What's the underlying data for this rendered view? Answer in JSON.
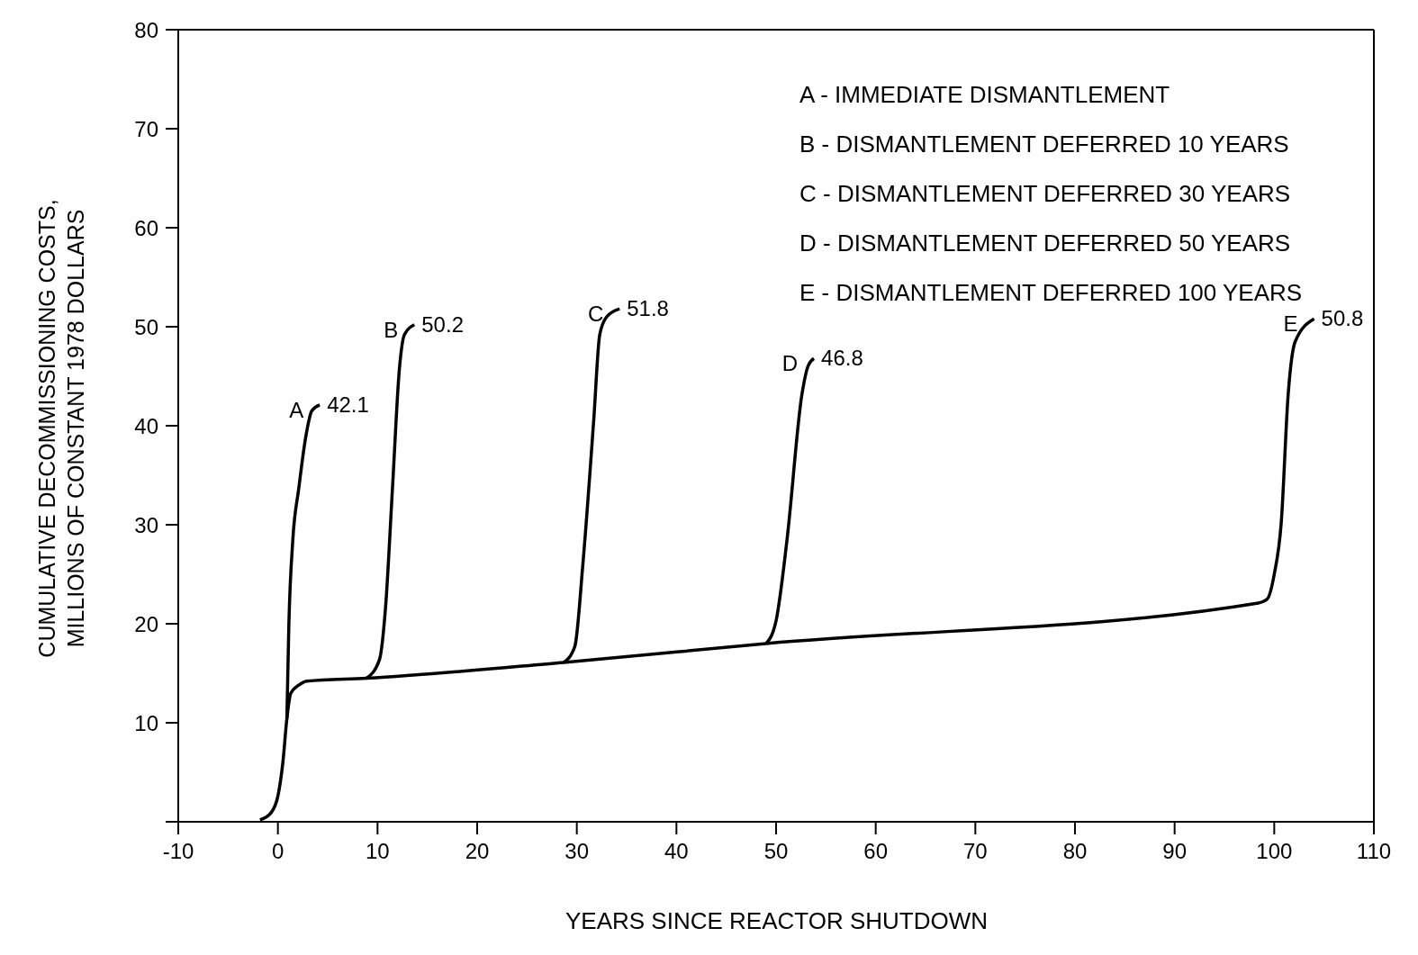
{
  "chart_data": {
    "type": "line",
    "xlabel": "YEARS SINCE REACTOR SHUTDOWN",
    "ylabel": "CUMULATIVE DECOMMISSIONING COSTS, MILLIONS OF CONSTANT 1978 DOLLARS",
    "xlim": [
      -10,
      110
    ],
    "xticks": [
      -10,
      0,
      10,
      20,
      30,
      40,
      50,
      60,
      70,
      80,
      90,
      100,
      110
    ],
    "ylim": [
      0,
      80
    ],
    "yticks": [
      {
        "value": 0,
        "label": null
      },
      10,
      20,
      30,
      40,
      50,
      60,
      70,
      80
    ],
    "marker": "none",
    "line_style": "solid",
    "annotations": [
      "A - IMMEDIATE DISMANTLEMENT",
      "B - DISMANTLEMENT DEFERRED 10 YEARS",
      "C - DISMANTLEMENT DEFERRED 30 YEARS",
      "D - DISMANTLEMENT DEFERRED 50 YEARS",
      "E - DISMANTLEMENT DEFERRED 100 YEARS"
    ],
    "series": [
      {
        "name": "A",
        "color": "#000000",
        "x": [
          0.9,
          1.1,
          1.5,
          2.1,
          2.8,
          3.4,
          4.2
        ],
        "values": [
          10.4,
          19.9,
          28.5,
          33.7,
          38.9,
          41.5,
          42.1
        ],
        "value_labels": [
          null,
          null,
          null,
          null,
          null,
          null,
          "42.1"
        ]
      },
      {
        "name": "B",
        "color": "#000000",
        "x": [
          8.9,
          10.2,
          10.8,
          11.5,
          12.2,
          12.7,
          13.7
        ],
        "values": [
          14.5,
          16.4,
          21.6,
          33.7,
          45.8,
          49.2,
          50.2
        ],
        "value_labels": [
          null,
          null,
          null,
          null,
          null,
          null,
          "50.2"
        ]
      },
      {
        "name": "C",
        "color": "#000000",
        "x": [
          28.7,
          29.8,
          30.6,
          31.7,
          32.3,
          33.0,
          34.3
        ],
        "values": [
          16.1,
          17.7,
          25.9,
          40.6,
          49.2,
          51.0,
          51.8
        ],
        "value_labels": [
          null,
          null,
          null,
          null,
          null,
          null,
          "51.8"
        ]
      },
      {
        "name": "D",
        "color": "#000000",
        "x": [
          49.0,
          50.0,
          51.1,
          52.6,
          53.2,
          53.8
        ],
        "values": [
          18.0,
          20.3,
          28.5,
          43.2,
          46.0,
          46.8
        ],
        "value_labels": [
          null,
          null,
          null,
          null,
          null,
          "46.8"
        ]
      },
      {
        "name": "E",
        "color": "#000000",
        "x": [
          -1.8,
          -0.7,
          0,
          0.5,
          0.9,
          1.3,
          2.1,
          2.9,
          8.9,
          28.7,
          49.0,
          98.4,
          99.3,
          100.0,
          100.7,
          101.4,
          102.1,
          104.0
        ],
        "values": [
          0.2,
          0.9,
          2.6,
          6.0,
          10.4,
          13.0,
          13.8,
          14.2,
          14.5,
          16.1,
          18.0,
          22.1,
          22.5,
          25.0,
          30.2,
          43.2,
          48.5,
          50.8
        ],
        "value_labels": [
          null,
          null,
          null,
          null,
          null,
          null,
          null,
          null,
          null,
          null,
          null,
          null,
          null,
          null,
          null,
          null,
          null,
          "50.8"
        ]
      }
    ]
  }
}
